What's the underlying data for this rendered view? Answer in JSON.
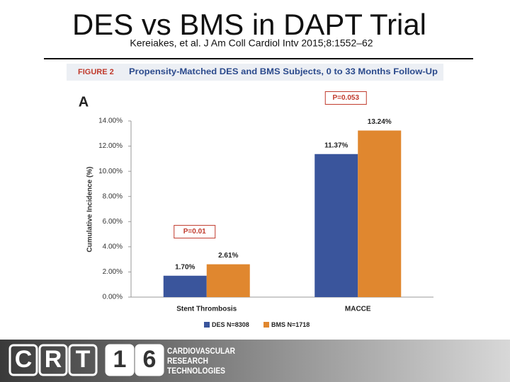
{
  "slide": {
    "title": "DES vs BMS in DAPT Trial",
    "subtitle": "Kereiakes, et al. J Am Coll Cardiol Intv 2015;8:1552–62",
    "figure_label": "FIGURE 2",
    "figure_title": "Propensity-Matched DES and BMS Subjects, 0 to 33 Months Follow-Up",
    "panel_label": "A",
    "footer": {
      "logo": [
        "C",
        "R",
        "T",
        "1",
        "6"
      ],
      "organization": [
        "CARDIOVASCULAR",
        "RESEARCH",
        "TECHNOLOGIES"
      ]
    }
  },
  "chart_data": {
    "type": "bar",
    "ylabel": "Cumulative Incidence (%)",
    "categories": [
      "Stent Thrombosis",
      "MACCE"
    ],
    "series": [
      {
        "name": "DES N=8308",
        "color": "#3a559c",
        "values": [
          1.7,
          11.37
        ],
        "value_labels": [
          "1.70%",
          "11.37%"
        ]
      },
      {
        "name": "BMS N=1718",
        "color": "#e0872f",
        "values": [
          2.61,
          13.24
        ],
        "value_labels": [
          "2.61%",
          "13.24%"
        ]
      }
    ],
    "annotations": [
      "P=0.01",
      "P=0.053"
    ],
    "ylim": [
      0,
      14
    ],
    "yticks": [
      {
        "value": 0,
        "label": "0.00%"
      },
      {
        "value": 2,
        "label": "2.00%"
      },
      {
        "value": 4,
        "label": "4.00%"
      },
      {
        "value": 6,
        "label": "6.00%"
      },
      {
        "value": 8,
        "label": "8.00%"
      },
      {
        "value": 10,
        "label": "10.00%"
      },
      {
        "value": 12,
        "label": "12.00%"
      },
      {
        "value": 14,
        "label": "14.00%"
      }
    ],
    "grid": false,
    "legend": "bottom"
  }
}
